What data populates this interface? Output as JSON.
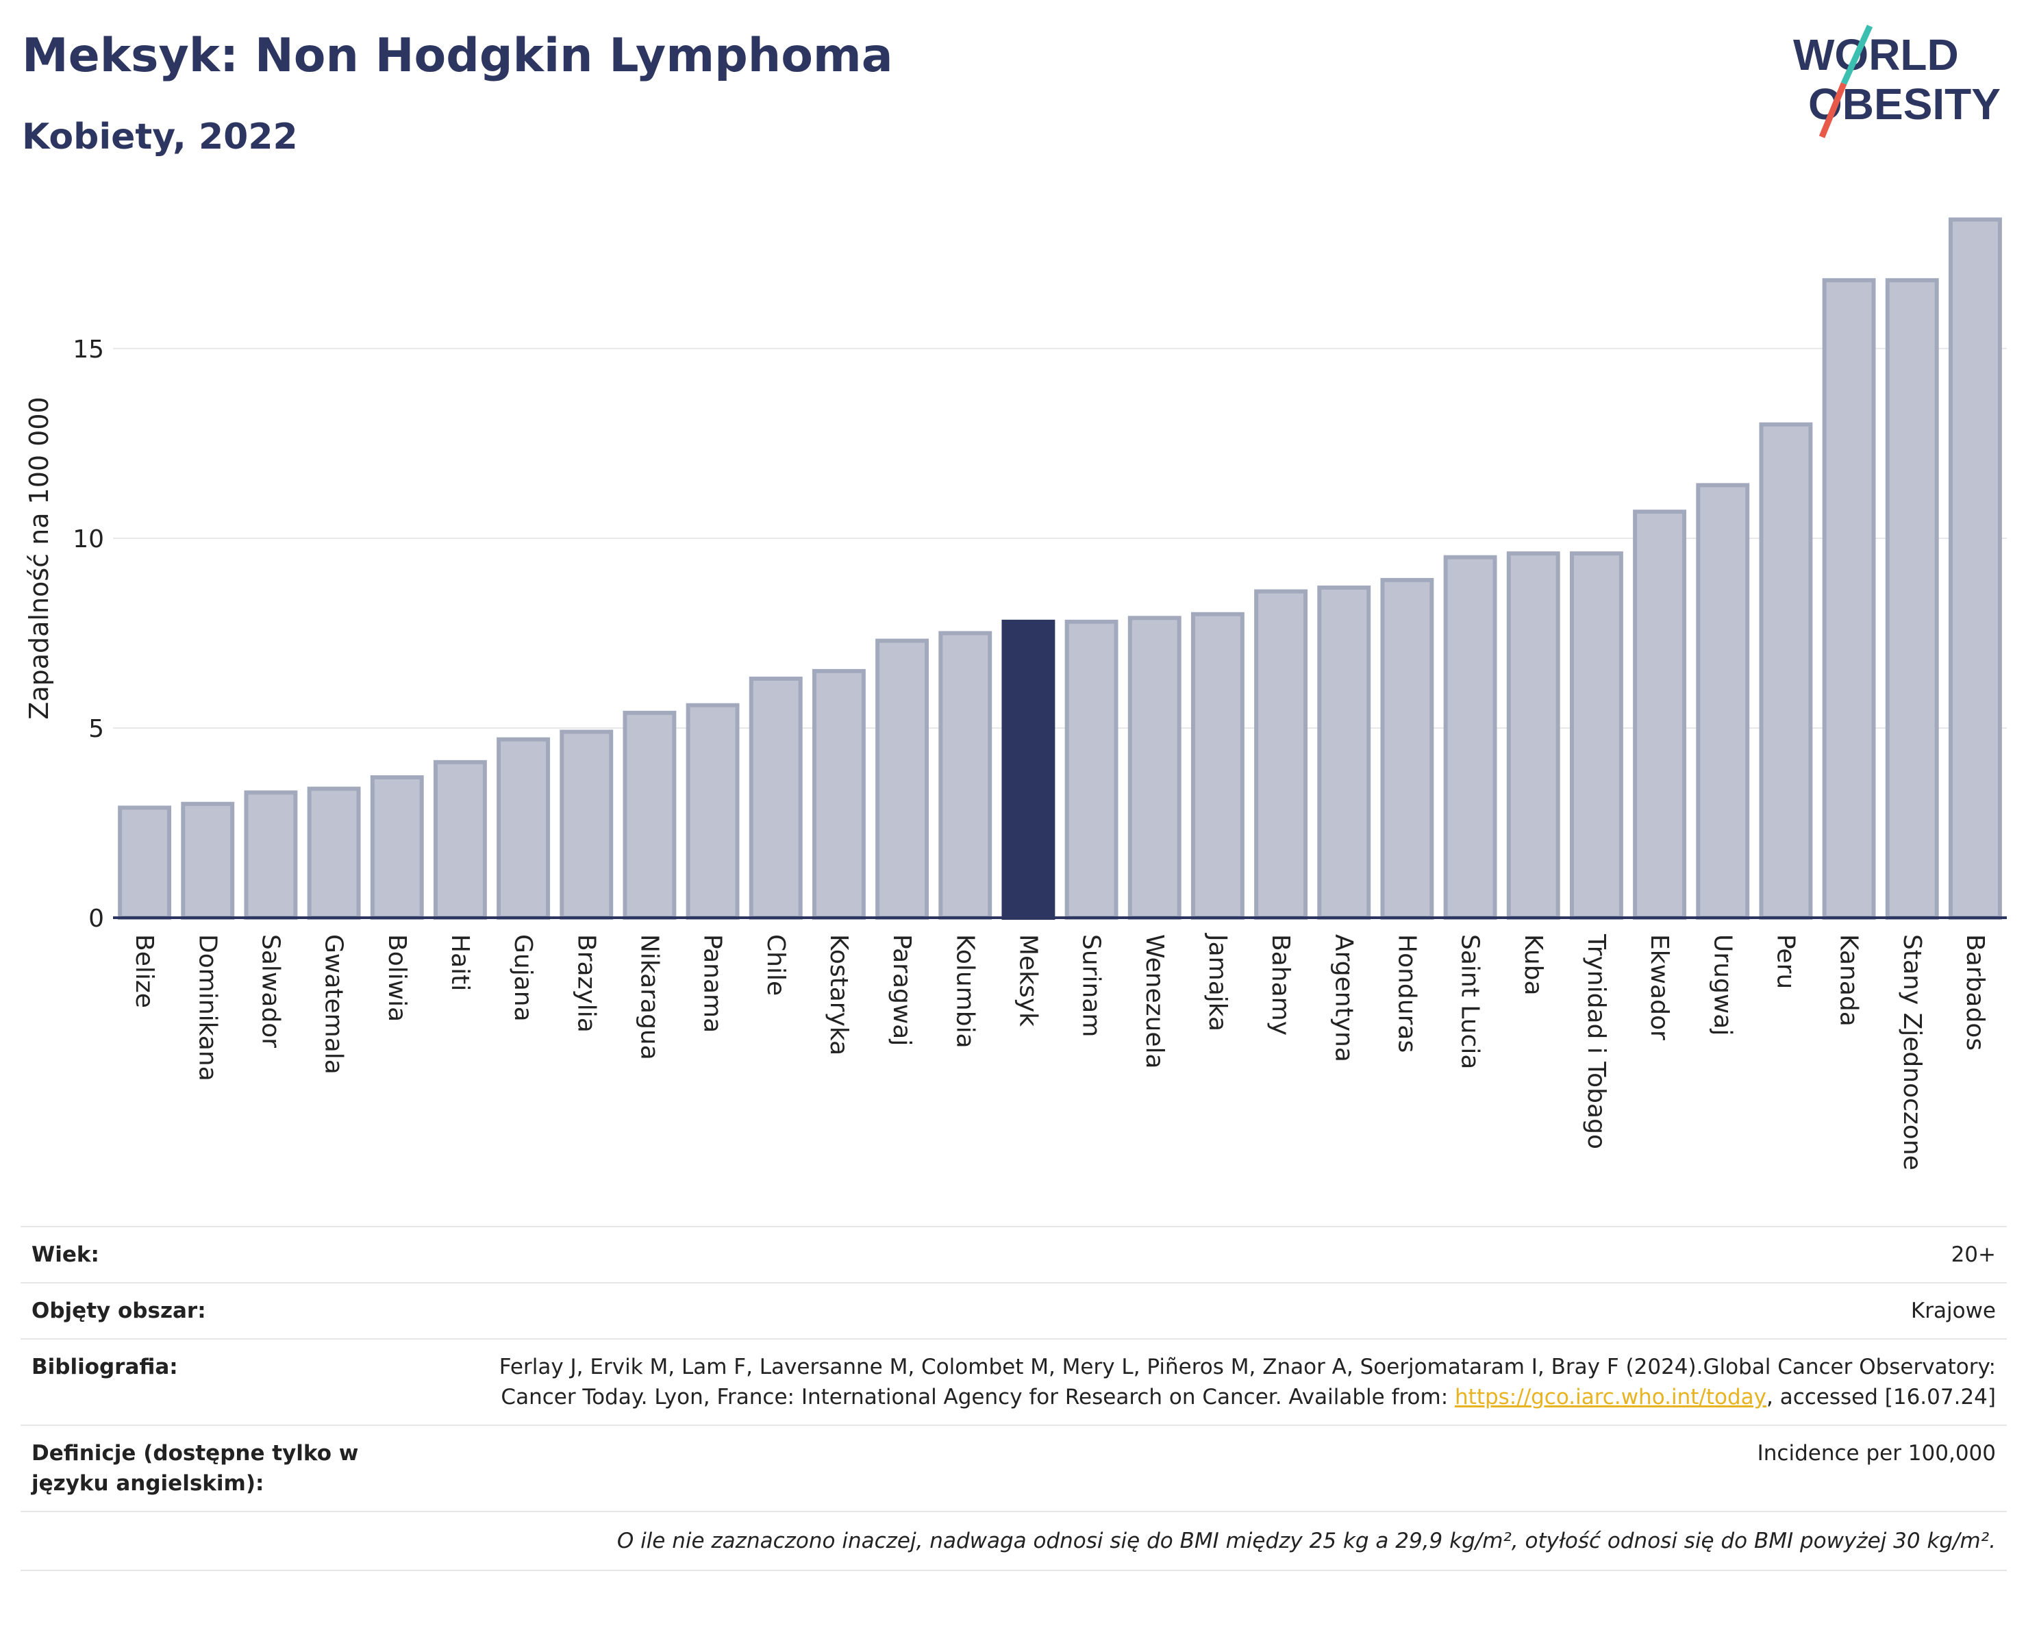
{
  "header": {
    "title": "Meksyk: Non Hodgkin Lymphoma",
    "subtitle": "Kobiety, 2022"
  },
  "logo": {
    "line1": "WORLD",
    "line2": "OBESITY"
  },
  "colors": {
    "highlight": "#2c3660",
    "bar": "#bfc3d1",
    "bar_stroke": "#a3a9bd",
    "axis": "#2c3660",
    "grid": "#e8e8e8",
    "accent_teal": "#3bbfb0",
    "accent_red": "#e8594a"
  },
  "chart_data": {
    "type": "bar",
    "ylabel": "Zapadalność na 100 000",
    "ylim": [
      0,
      18.5
    ],
    "yticks": [
      0,
      5,
      10,
      15
    ],
    "grid": true,
    "highlight": "Meksyk",
    "categories": [
      "Belize",
      "Dominikana",
      "Salwador",
      "Gwatemala",
      "Boliwia",
      "Haiti",
      "Gujana",
      "Brazylia",
      "Nikaragua",
      "Panama",
      "Chile",
      "Kostaryka",
      "Paragwaj",
      "Kolumbia",
      "Meksyk",
      "Surinam",
      "Wenezuela",
      "Jamajka",
      "Bahamy",
      "Argentyna",
      "Honduras",
      "Saint Lucia",
      "Kuba",
      "Trynidad i Tobago",
      "Ekwador",
      "Urugwaj",
      "Peru",
      "Kanada",
      "Stany Zjednoczone",
      "Barbados"
    ],
    "values": [
      2.9,
      3.0,
      3.3,
      3.4,
      3.7,
      4.1,
      4.7,
      4.9,
      5.4,
      5.6,
      6.3,
      6.5,
      7.3,
      7.5,
      7.8,
      7.8,
      7.9,
      8.0,
      8.6,
      8.7,
      8.9,
      9.5,
      9.6,
      9.6,
      10.7,
      11.4,
      13.0,
      16.8,
      16.8,
      18.4
    ]
  },
  "meta": {
    "age_label": "Wiek:",
    "age_value": "20+",
    "area_label": "Objęty obszar:",
    "area_value": "Krajowe",
    "biblio_label": "Bibliografia:",
    "biblio_text1": "Ferlay J, Ervik M, Lam F, Laversanne M, Colombet M, Mery L, Piñeros M, Znaor A, Soerjomataram I, Bray F (2024).Global Cancer Observatory: Cancer Today. Lyon, France: International Agency for Research on Cancer. Available from: ",
    "biblio_link": "https://gco.iarc.who.int/today",
    "biblio_text2": ", accessed [16.07.24]",
    "def_label": "Definicje (dostępne tylko w języku angielskim):",
    "def_value": "Incidence per 100,000",
    "footnote": "O ile nie zaznaczono inaczej, nadwaga odnosi się do BMI między 25 kg a 29,9 kg/m², otyłość odnosi się do BMI powyżej 30 kg/m²."
  }
}
